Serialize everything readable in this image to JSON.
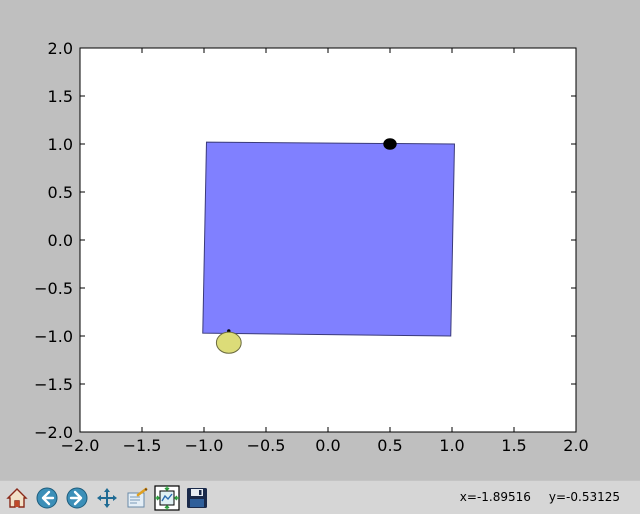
{
  "chart_data": {
    "type": "scatter",
    "title": "",
    "xlabel": "",
    "ylabel": "",
    "xlim": [
      -2.0,
      2.0
    ],
    "ylim": [
      -2.0,
      2.0
    ],
    "xticks": [
      "−2.0",
      "−1.5",
      "−1.0",
      "−0.5",
      "0.0",
      "0.5",
      "1.0",
      "1.5",
      "2.0"
    ],
    "yticks": [
      "2.0",
      "1.5",
      "1.0",
      "0.5",
      "0.0",
      "−0.5",
      "−1.0",
      "−1.5",
      "−2.0"
    ],
    "xtick_values": [
      -2.0,
      -1.5,
      -1.0,
      -0.5,
      0.0,
      0.5,
      1.0,
      1.5,
      2.0
    ],
    "ytick_values": [
      2.0,
      1.5,
      1.0,
      0.5,
      0.0,
      -0.5,
      -1.0,
      -1.5,
      -2.0
    ],
    "grid": false,
    "polygon": {
      "vertices": [
        [
          -0.98,
          1.02
        ],
        [
          1.02,
          1.0
        ],
        [
          0.99,
          -1.0
        ],
        [
          -1.01,
          -0.97
        ]
      ],
      "fill": "#8080ff",
      "edge": "#3a3a7a"
    },
    "markers": [
      {
        "x": 0.5,
        "y": 1.0,
        "rx": 0.05,
        "ry": 0.055,
        "fill": "#000000"
      },
      {
        "x": -0.8,
        "y": -0.95,
        "rx": 0.01,
        "ry": 0.015,
        "fill": "#000000"
      },
      {
        "x": -0.8,
        "y": -1.07,
        "rx": 0.1,
        "ry": 0.11,
        "fill": "#dcdc78",
        "edge": "#6b6b40"
      }
    ]
  },
  "toolbar": {
    "buttons": [
      {
        "name": "home-button",
        "icon": "home-icon"
      },
      {
        "name": "back-button",
        "icon": "arrow-left-icon"
      },
      {
        "name": "forward-button",
        "icon": "arrow-right-icon"
      },
      {
        "name": "pan-button",
        "icon": "move-icon"
      },
      {
        "name": "zoom-button",
        "icon": "zoom-rect-icon"
      },
      {
        "name": "subplots-button",
        "icon": "subplots-icon"
      },
      {
        "name": "save-button",
        "icon": "floppy-disk-icon"
      }
    ],
    "coord_x": "x=-1.89516",
    "coord_y": "y=-0.53125"
  },
  "colors": {
    "figure_bg": "#bfbfbf",
    "axes_bg": "#ffffff",
    "toolbar_bg": "#d6d6d6"
  }
}
